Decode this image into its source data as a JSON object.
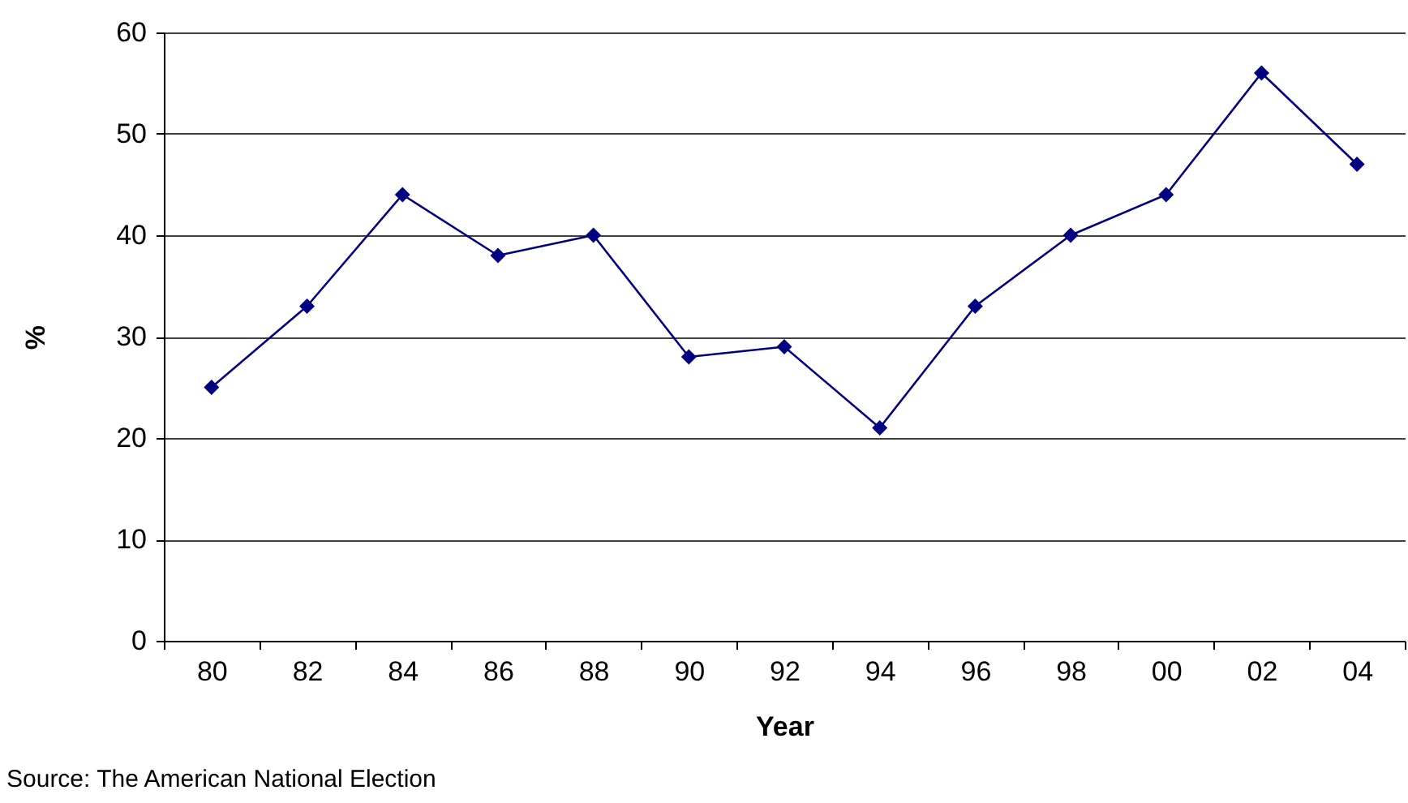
{
  "chart_data": {
    "type": "line",
    "xlabel": "Year",
    "ylabel": "%",
    "categories": [
      "80",
      "82",
      "84",
      "86",
      "88",
      "90",
      "92",
      "94",
      "96",
      "98",
      "00",
      "02",
      "04"
    ],
    "series": [
      {
        "color": "#000080",
        "values": [
          25,
          33,
          44,
          38,
          40,
          28,
          29,
          21,
          33,
          40,
          44,
          56,
          47
        ]
      }
    ],
    "ylim": [
      0,
      60
    ],
    "yticks": [
      0,
      10,
      20,
      30,
      40,
      50,
      60
    ],
    "grid": "y",
    "marker": "diamond",
    "line_style": "solid",
    "annotations": [
      "Source: The American National Election"
    ]
  }
}
